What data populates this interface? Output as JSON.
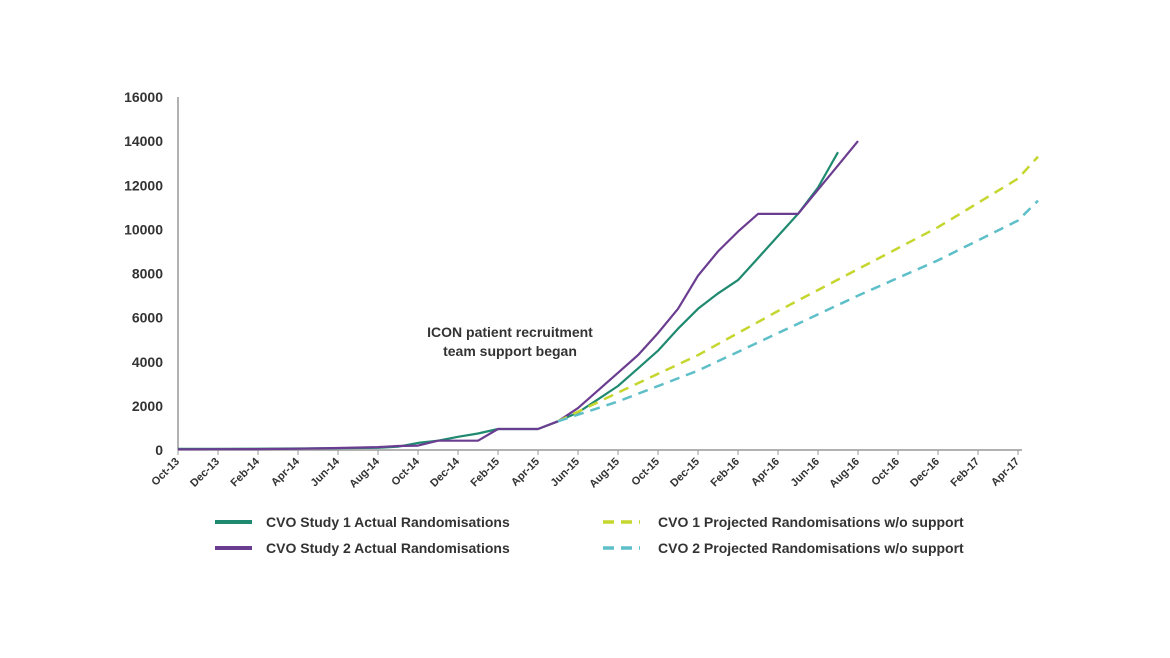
{
  "chart_data": {
    "type": "line",
    "title": "",
    "xlabel": "",
    "ylabel": "",
    "ylim": [
      0,
      16000
    ],
    "yticks": [
      0,
      2000,
      4000,
      6000,
      8000,
      10000,
      12000,
      14000,
      16000
    ],
    "x_tick_labels": [
      "Oct-13",
      "Dec-13",
      "Feb-14",
      "Apr-14",
      "Jun-14",
      "Aug-14",
      "Oct-14",
      "Dec-14",
      "Feb-15",
      "Apr-15",
      "Jun-15",
      "Aug-15",
      "Oct-15",
      "Dec-15",
      "Feb-16",
      "Apr-16",
      "Jun-16",
      "Aug-16",
      "Oct-16",
      "Dec-16",
      "Feb-17",
      "Apr-17"
    ],
    "x_month_range": [
      "Oct-13",
      "May-17"
    ],
    "grid": false,
    "legend_position": "bottom",
    "annotation": {
      "line1": "ICON patient recruitment",
      "line2": "team support began"
    },
    "series": [
      {
        "name": "CVO Study 1 Actual Randomisations",
        "color": "#1f8a70",
        "dash": false,
        "points": [
          [
            "Oct-13",
            50
          ],
          [
            "Dec-13",
            55
          ],
          [
            "Feb-14",
            60
          ],
          [
            "Apr-14",
            70
          ],
          [
            "Jun-14",
            80
          ],
          [
            "Aug-14",
            100
          ],
          [
            "Sep-14",
            150
          ],
          [
            "Oct-14",
            320
          ],
          [
            "Nov-14",
            420
          ],
          [
            "Dec-14",
            600
          ],
          [
            "Jan-15",
            750
          ],
          [
            "Feb-15",
            950
          ],
          [
            "Mar-15",
            950
          ],
          [
            "Apr-15",
            950
          ],
          [
            "May-15",
            1300
          ],
          [
            "Jun-15",
            1700
          ],
          [
            "Jul-15",
            2300
          ],
          [
            "Aug-15",
            2900
          ],
          [
            "Sep-15",
            3700
          ],
          [
            "Oct-15",
            4500
          ],
          [
            "Nov-15",
            5500
          ],
          [
            "Dec-15",
            6400
          ],
          [
            "Jan-16",
            7100
          ],
          [
            "Feb-16",
            7700
          ],
          [
            "Mar-16",
            8700
          ],
          [
            "Apr-16",
            9700
          ],
          [
            "May-16",
            10700
          ],
          [
            "Jun-16",
            11900
          ],
          [
            "Jul-16",
            13500
          ]
        ]
      },
      {
        "name": "CVO Study 2 Actual Randomisations",
        "color": "#6b3d91",
        "dash": false,
        "points": [
          [
            "Oct-13",
            30
          ],
          [
            "Dec-13",
            35
          ],
          [
            "Feb-14",
            40
          ],
          [
            "Apr-14",
            60
          ],
          [
            "Jun-14",
            90
          ],
          [
            "Aug-14",
            130
          ],
          [
            "Sep-14",
            180
          ],
          [
            "Oct-14",
            200
          ],
          [
            "Nov-14",
            420
          ],
          [
            "Dec-14",
            420
          ],
          [
            "Jan-15",
            420
          ],
          [
            "Feb-15",
            950
          ],
          [
            "Mar-15",
            950
          ],
          [
            "Apr-15",
            950
          ],
          [
            "May-15",
            1300
          ],
          [
            "Jun-15",
            1900
          ],
          [
            "Jul-15",
            2700
          ],
          [
            "Aug-15",
            3500
          ],
          [
            "Sep-15",
            4300
          ],
          [
            "Oct-15",
            5300
          ],
          [
            "Nov-15",
            6400
          ],
          [
            "Dec-15",
            7900
          ],
          [
            "Jan-16",
            9000
          ],
          [
            "Feb-16",
            9900
          ],
          [
            "Mar-16",
            10700
          ],
          [
            "Apr-16",
            10700
          ],
          [
            "May-16",
            10700
          ],
          [
            "Jun-16",
            11800
          ],
          [
            "Jul-16",
            12900
          ],
          [
            "Aug-16",
            14000
          ]
        ]
      },
      {
        "name": "CVO 1 Projected Randomisations w/o support",
        "color": "#c5d62f",
        "dash": true,
        "points": [
          [
            "May-15",
            1300
          ],
          [
            "Aug-15",
            2600
          ],
          [
            "Dec-15",
            4300
          ],
          [
            "Apr-16",
            6300
          ],
          [
            "Aug-16",
            8200
          ],
          [
            "Dec-16",
            10100
          ],
          [
            "Apr-17",
            12300
          ],
          [
            "May-17",
            13300
          ]
        ]
      },
      {
        "name": "CVO 2 Projected Randomisations w/o support",
        "color": "#5fbfc9",
        "dash": true,
        "points": [
          [
            "May-15",
            1300
          ],
          [
            "Aug-15",
            2200
          ],
          [
            "Dec-15",
            3600
          ],
          [
            "Apr-16",
            5300
          ],
          [
            "Aug-16",
            7000
          ],
          [
            "Dec-16",
            8600
          ],
          [
            "Apr-17",
            10400
          ],
          [
            "May-17",
            11300
          ]
        ]
      }
    ]
  }
}
